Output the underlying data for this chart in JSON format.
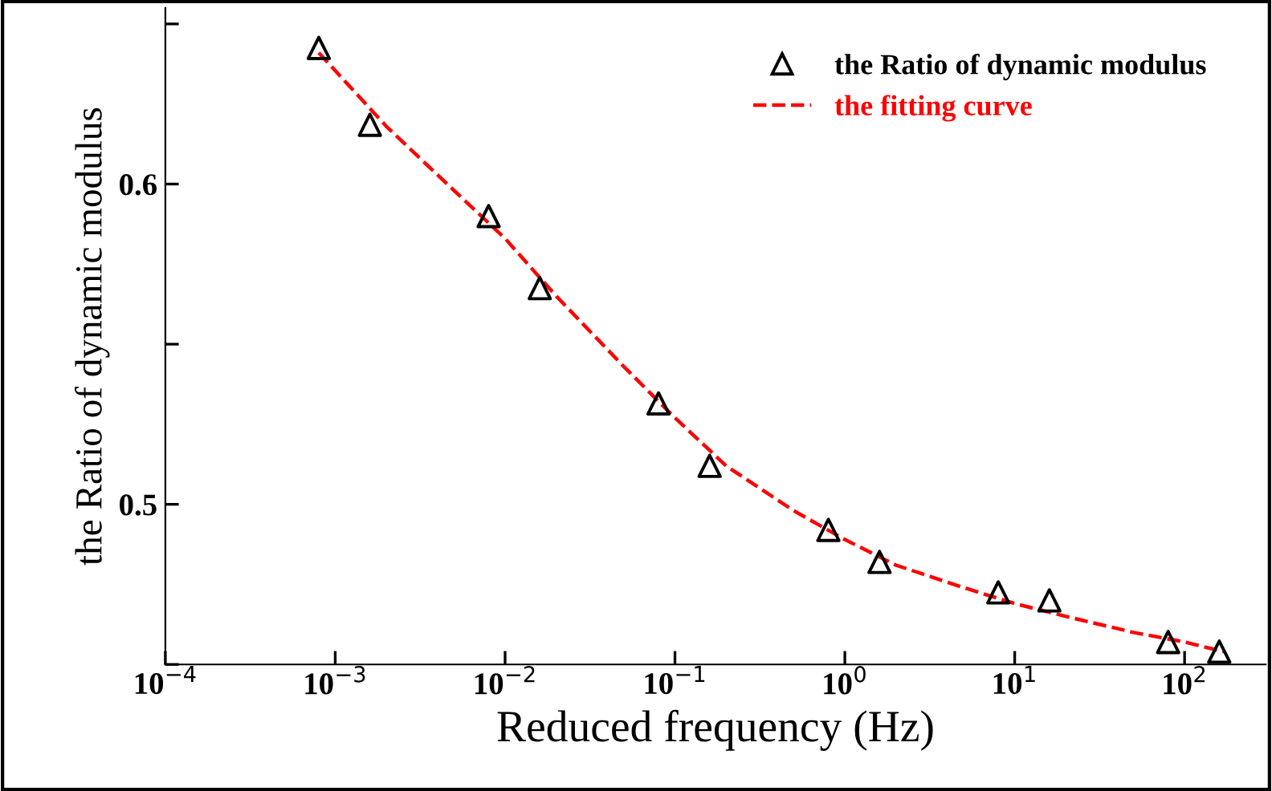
{
  "chart_data": {
    "type": "scatter",
    "xlabel": "Reduced frequency (Hz)",
    "ylabel": "the Ratio of dynamic modulus",
    "log": "x",
    "xlim": [
      0.0001,
      300
    ],
    "ylim": [
      0.45,
      0.655
    ],
    "xticks": [
      {
        "value": 0.0001,
        "label": "10$^{−4}$"
      },
      {
        "value": 0.001,
        "label": "10$^{−3}$"
      },
      {
        "value": 0.01,
        "label": "10$^{−2}$"
      },
      {
        "value": 0.1,
        "label": "10$^{−1}$"
      },
      {
        "value": 1,
        "label": "10$^{0}$"
      },
      {
        "value": 10,
        "label": "10$^{1}$"
      },
      {
        "value": 100,
        "label": "10$^{2}$"
      }
    ],
    "yticks": [
      {
        "value": 0.45,
        "label": null
      },
      {
        "value": 0.5,
        "label": "0.5"
      },
      {
        "value": 0.55,
        "label": null
      },
      {
        "value": 0.6,
        "label": "0.6"
      },
      {
        "value": 0.65,
        "label": null
      }
    ],
    "grid": false,
    "legend": "top right",
    "series": [
      {
        "name": "the Ratio of dynamic modulus",
        "color": "#000000",
        "marker": "triangle",
        "x": [
          0.0008,
          0.0016,
          0.008,
          0.016,
          0.08,
          0.16,
          0.8,
          1.6,
          8,
          16,
          80,
          160
        ],
        "values": [
          0.6425,
          0.6185,
          0.59,
          0.5675,
          0.5315,
          0.512,
          0.492,
          0.482,
          0.4725,
          0.47,
          0.457,
          0.454
        ]
      },
      {
        "name": "the fitting curve",
        "type": "line",
        "color": "#ff0000",
        "line_style": "dashed",
        "x": [
          0.0008,
          0.002,
          0.005,
          0.01,
          0.02,
          0.05,
          0.1,
          0.2,
          0.5,
          1,
          2,
          5,
          10,
          20,
          50,
          100,
          170
        ],
        "values": [
          0.641,
          0.618,
          0.598,
          0.583,
          0.565,
          0.543,
          0.527,
          0.512,
          0.498,
          0.489,
          0.481,
          0.474,
          0.469,
          0.465,
          0.46,
          0.457,
          0.454
        ]
      }
    ]
  }
}
